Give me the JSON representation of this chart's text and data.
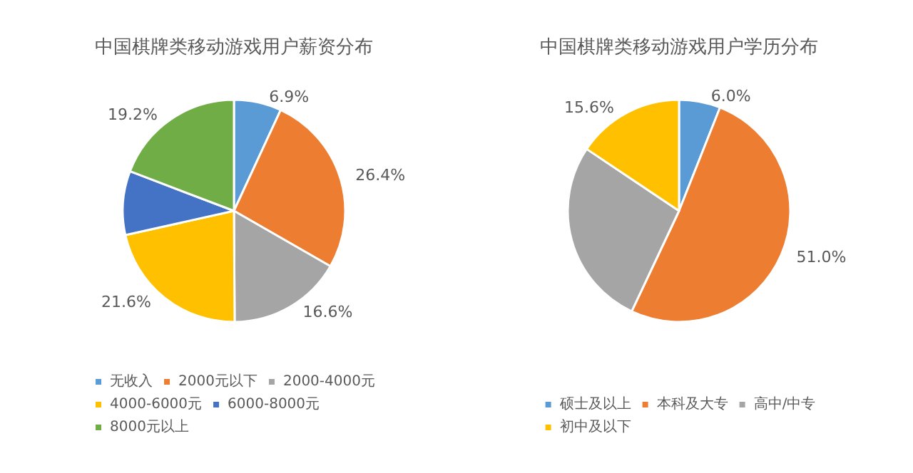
{
  "chart_data": [
    {
      "type": "pie",
      "title": "中国棋牌类移动游戏用户薪资分布",
      "categories": [
        "无收入",
        "2000元以下",
        "2000-4000元",
        "4000-6000元",
        "6000-8000元",
        "8000元以上"
      ],
      "values": [
        6.9,
        26.4,
        16.6,
        21.6,
        9.3,
        19.2
      ],
      "colors": [
        "#5b9bd5",
        "#ed7d31",
        "#a5a5a5",
        "#ffc000",
        "#4472c4",
        "#70ad47"
      ],
      "value_labels": [
        "6.9%",
        "26.4%",
        "16.6%",
        "21.6%",
        null,
        "19.2%"
      ],
      "legend": "bottom"
    },
    {
      "type": "pie",
      "title": "中国棋牌类移动游戏用户学历分布",
      "categories": [
        "硕士及以上",
        "本科及大专",
        "高中/中专",
        "初中及以下"
      ],
      "values": [
        6.0,
        51.0,
        27.4,
        15.6
      ],
      "colors": [
        "#5b9bd5",
        "#ed7d31",
        "#a5a5a5",
        "#ffc000"
      ],
      "value_labels": [
        "6.0%",
        "51.0%",
        null,
        "15.6%"
      ],
      "legend": "bottom"
    }
  ]
}
